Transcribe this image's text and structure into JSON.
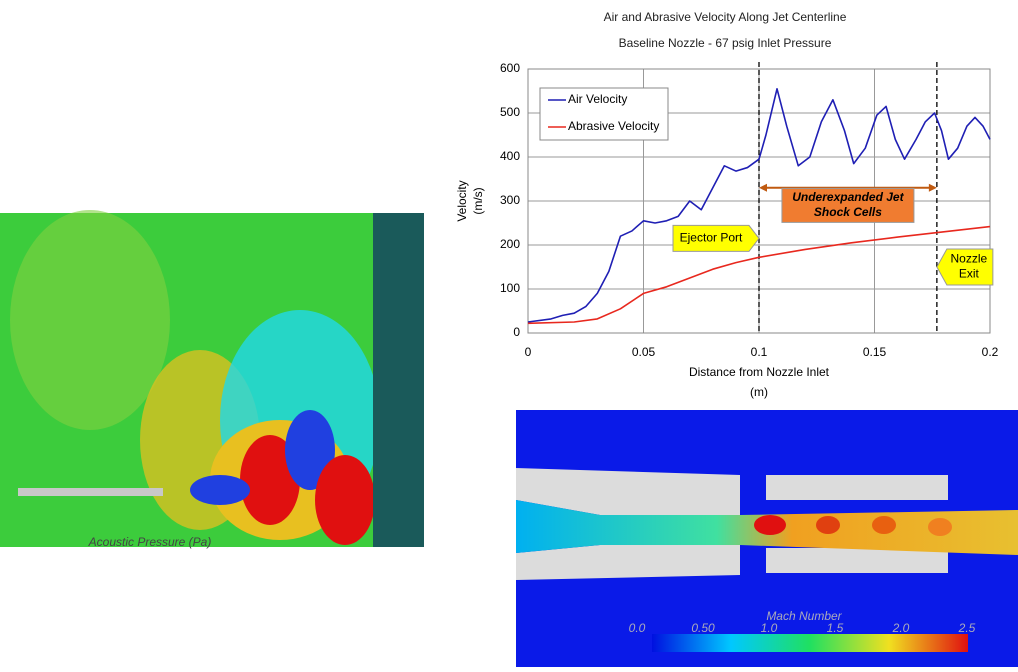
{
  "chart_data": {
    "type": "line",
    "title": [
      "Air and Abrasive Velocity Along Jet Centerline",
      "Baseline Nozzle - 67 psig Inlet Pressure"
    ],
    "xlabel": [
      "Distance from Nozzle Inlet",
      "(m)"
    ],
    "ylabel": [
      "Velocity",
      "(m/s)"
    ],
    "xlim": [
      0,
      0.2
    ],
    "ylim": [
      0,
      600
    ],
    "xticks": [
      0,
      0.05,
      0.1,
      0.15,
      0.2
    ],
    "yticks": [
      0,
      100,
      200,
      300,
      400,
      500,
      600
    ],
    "grid": true,
    "legend": "upper-left",
    "series": [
      {
        "name": "Air Velocity",
        "color": "#1f1fb4",
        "x": [
          0,
          0.01,
          0.015,
          0.02,
          0.025,
          0.03,
          0.035,
          0.04,
          0.045,
          0.05,
          0.055,
          0.06,
          0.065,
          0.07,
          0.075,
          0.08,
          0.085,
          0.09,
          0.095,
          0.1,
          0.103,
          0.1078,
          0.112,
          0.117,
          0.122,
          0.127,
          0.132,
          0.137,
          0.141,
          0.146,
          0.151,
          0.155,
          0.159,
          0.163,
          0.168,
          0.172,
          0.176,
          0.179,
          0.182,
          0.186,
          0.19,
          0.1935,
          0.197,
          0.2
        ],
        "values": [
          25,
          32,
          40,
          45,
          60,
          90,
          140,
          220,
          232,
          255,
          250,
          255,
          265,
          300,
          280,
          330,
          380,
          368,
          376,
          395,
          450,
          555,
          470,
          380,
          400,
          480,
          530,
          460,
          385,
          420,
          495,
          515,
          440,
          395,
          440,
          480,
          500,
          460,
          395,
          420,
          470,
          490,
          470,
          440
        ]
      },
      {
        "name": "Abrasive Velocity",
        "color": "#e8281e",
        "x": [
          0,
          0.02,
          0.03,
          0.04,
          0.05,
          0.06,
          0.07,
          0.08,
          0.09,
          0.1,
          0.12,
          0.14,
          0.16,
          0.18,
          0.2
        ],
        "values": [
          22,
          25,
          32,
          55,
          90,
          105,
          125,
          145,
          160,
          172,
          190,
          205,
          218,
          230,
          242
        ]
      }
    ],
    "vlines": [
      0.1,
      0.177
    ],
    "annotations": [
      {
        "text": [
          "Ejector Port"
        ],
        "x": 0.1,
        "y": 215,
        "side": "left"
      },
      {
        "text": [
          "Nozzle",
          "Exit"
        ],
        "x": 0.177,
        "y": 150,
        "side": "right"
      },
      {
        "text": [
          "Underexpanded Jet",
          "Shock Cells"
        ],
        "x": 0.1385,
        "y": 290,
        "span": [
          0.1,
          0.177
        ],
        "arrow_y": 330
      }
    ]
  },
  "acoustic_image": {
    "caption": "Acoustic Pressure (Pa)"
  },
  "mach_image": {
    "caption": "Mach Number",
    "colorbar_ticks": [
      "0.0",
      "0.50",
      "1.0",
      "1.5",
      "2.0",
      "2.5"
    ]
  }
}
